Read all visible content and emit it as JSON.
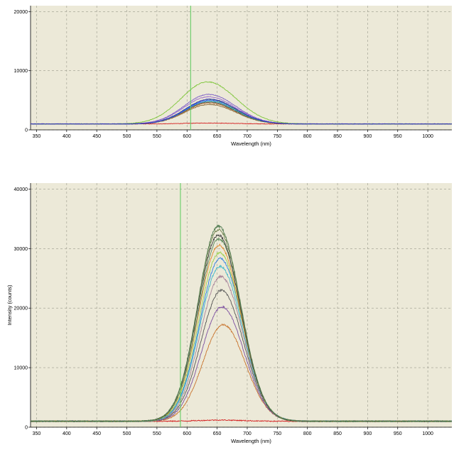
{
  "colors": {
    "plot_background": "#ece9d8",
    "grid": "#9a9a8c",
    "marker": "#66cc66"
  },
  "chart_data": [
    {
      "type": "line",
      "title": "",
      "xlabel": "Wavelength (nm)",
      "ylabel": "",
      "xlim": [
        340,
        1040
      ],
      "ylim": [
        0,
        21000
      ],
      "xticks": [
        350,
        400,
        450,
        500,
        550,
        600,
        650,
        700,
        750,
        800,
        850,
        900,
        950,
        1000
      ],
      "xtick_labels": [
        "350",
        "400",
        "450",
        "500",
        "550",
        "600",
        "650",
        "700",
        "750",
        "800",
        "850",
        "900",
        "950",
        "1000"
      ],
      "yticks": [
        0,
        10000,
        20000
      ],
      "ytick_labels": [
        "0",
        "10000",
        "20000"
      ],
      "grid": true,
      "marker_line_x": 606,
      "baseline": 1000,
      "series": [
        {
          "color": "#d42020",
          "peak_x": 635,
          "peak_y": 1150,
          "width": 40
        },
        {
          "color": "#8b6a3a",
          "peak_x": 637,
          "peak_y": 4300,
          "width": 40
        },
        {
          "color": "#b06a30",
          "peak_x": 637,
          "peak_y": 4550,
          "width": 40
        },
        {
          "color": "#555555",
          "peak_x": 637,
          "peak_y": 4700,
          "width": 40
        },
        {
          "color": "#2aa8a8",
          "peak_x": 637,
          "peak_y": 4850,
          "width": 40
        },
        {
          "color": "#3366ff",
          "peak_x": 638,
          "peak_y": 5000,
          "width": 40
        },
        {
          "color": "#4d8f4d",
          "peak_x": 637,
          "peak_y": 5150,
          "width": 40
        },
        {
          "color": "#9a6ad0",
          "peak_x": 636,
          "peak_y": 5600,
          "width": 41
        },
        {
          "color": "#7b5cc8",
          "peak_x": 636,
          "peak_y": 6000,
          "width": 41
        },
        {
          "color": "#7ec63a",
          "peak_x": 634,
          "peak_y": 8100,
          "width": 44
        },
        {
          "color": "#2f2fbf",
          "peak_x": 638,
          "peak_y": 5200,
          "width": 40
        }
      ]
    },
    {
      "type": "line",
      "title": "",
      "xlabel": "Wavelength (nm)",
      "ylabel": "Intensity (counts)",
      "xlim": [
        340,
        1040
      ],
      "ylim": [
        0,
        41000
      ],
      "xticks": [
        350,
        400,
        450,
        500,
        550,
        600,
        650,
        700,
        750,
        800,
        850,
        900,
        950,
        1000
      ],
      "xtick_labels": [
        "350",
        "400",
        "450",
        "500",
        "550",
        "600",
        "650",
        "700",
        "750",
        "800",
        "850",
        "900",
        "950",
        "1000"
      ],
      "yticks": [
        0,
        10000,
        20000,
        30000,
        40000
      ],
      "ytick_labels": [
        "0",
        "10000",
        "20000",
        "30000",
        "40000"
      ],
      "grid": true,
      "marker_line_x": 589,
      "baseline": 1000,
      "series": [
        {
          "color": "#d42020",
          "peak_x": 655,
          "peak_y": 1200,
          "width": 34
        },
        {
          "color": "#c8742e",
          "peak_x": 660,
          "peak_y": 17200,
          "width": 34
        },
        {
          "color": "#7b4da0",
          "peak_x": 658,
          "peak_y": 20200,
          "width": 34
        },
        {
          "color": "#555555",
          "peak_x": 657,
          "peak_y": 23000,
          "width": 34
        },
        {
          "color": "#a8849a",
          "peak_x": 656,
          "peak_y": 25300,
          "width": 34
        },
        {
          "color": "#3fb8c8",
          "peak_x": 655,
          "peak_y": 27000,
          "width": 34
        },
        {
          "color": "#2d7fe0",
          "peak_x": 655,
          "peak_y": 28300,
          "width": 34
        },
        {
          "color": "#9bd04a",
          "peak_x": 654,
          "peak_y": 29300,
          "width": 34
        },
        {
          "color": "#e08a2e",
          "peak_x": 653,
          "peak_y": 30600,
          "width": 34
        },
        {
          "color": "#5a8a5a",
          "peak_x": 653,
          "peak_y": 31600,
          "width": 34
        },
        {
          "color": "#3a3a3a",
          "peak_x": 652,
          "peak_y": 32300,
          "width": 34
        },
        {
          "color": "#6b7f4a",
          "peak_x": 652,
          "peak_y": 33200,
          "width": 34
        },
        {
          "color": "#4f7a4f",
          "peak_x": 652,
          "peak_y": 33800,
          "width": 34
        }
      ]
    }
  ]
}
